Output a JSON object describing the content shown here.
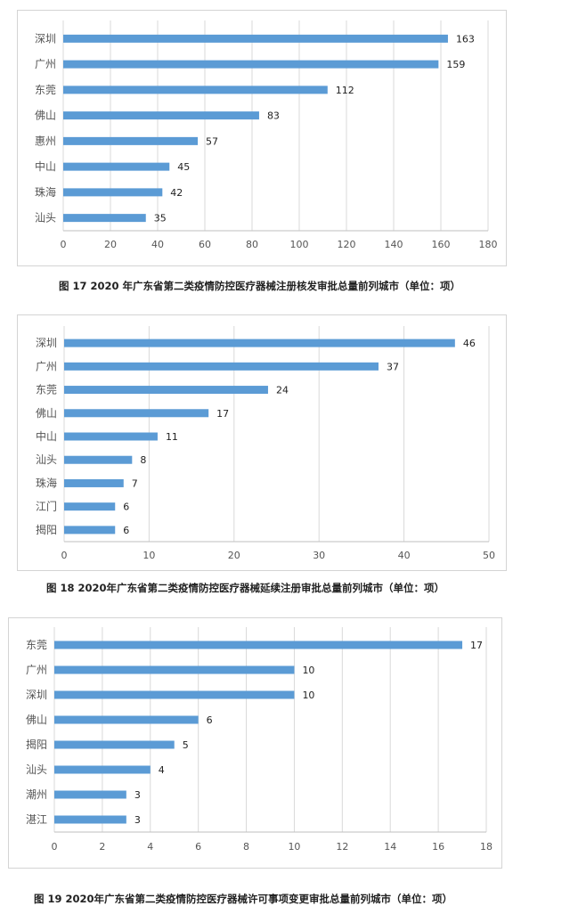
{
  "chart_data": [
    {
      "type": "bar",
      "orientation": "horizontal",
      "categories": [
        "深圳",
        "广州",
        "东莞",
        "佛山",
        "惠州",
        "中山",
        "珠海",
        "汕头"
      ],
      "values": [
        163,
        159,
        112,
        83,
        57,
        45,
        42,
        35
      ],
      "xlim": [
        0,
        180
      ],
      "xticks": [
        0,
        20,
        40,
        60,
        80,
        100,
        120,
        140,
        160,
        180
      ],
      "grid": "vertical",
      "bar_color": "#5b9bd5",
      "caption": "图 17 2020 年广东省第二类疫情防控医疗器械注册核发审批总量前列城市（单位：项）"
    },
    {
      "type": "bar",
      "orientation": "horizontal",
      "categories": [
        "深圳",
        "广州",
        "东莞",
        "佛山",
        "中山",
        "汕头",
        "珠海",
        "江门",
        "揭阳"
      ],
      "values": [
        46,
        37,
        24,
        17,
        11,
        8,
        7,
        6,
        6
      ],
      "xlim": [
        0,
        50
      ],
      "xticks": [
        0,
        10,
        20,
        30,
        40,
        50
      ],
      "grid": "vertical",
      "bar_color": "#5b9bd5",
      "caption": "图 18 2020年广东省第二类疫情防控医疗器械延续注册审批总量前列城市（单位：项）"
    },
    {
      "type": "bar",
      "orientation": "horizontal",
      "categories": [
        "东莞",
        "广州",
        "深圳",
        "佛山",
        "揭阳",
        "汕头",
        "潮州",
        "湛江"
      ],
      "values": [
        17,
        10,
        10,
        6,
        5,
        4,
        3,
        3
      ],
      "xlim": [
        0,
        18
      ],
      "xticks": [
        0,
        2,
        4,
        6,
        8,
        10,
        12,
        14,
        16,
        18
      ],
      "grid": "vertical",
      "bar_color": "#5b9bd5",
      "caption": "图 19 2020年广东省第二类疫情防控医疗器械许可事项变更审批总量前列城市（单位：项）"
    }
  ]
}
